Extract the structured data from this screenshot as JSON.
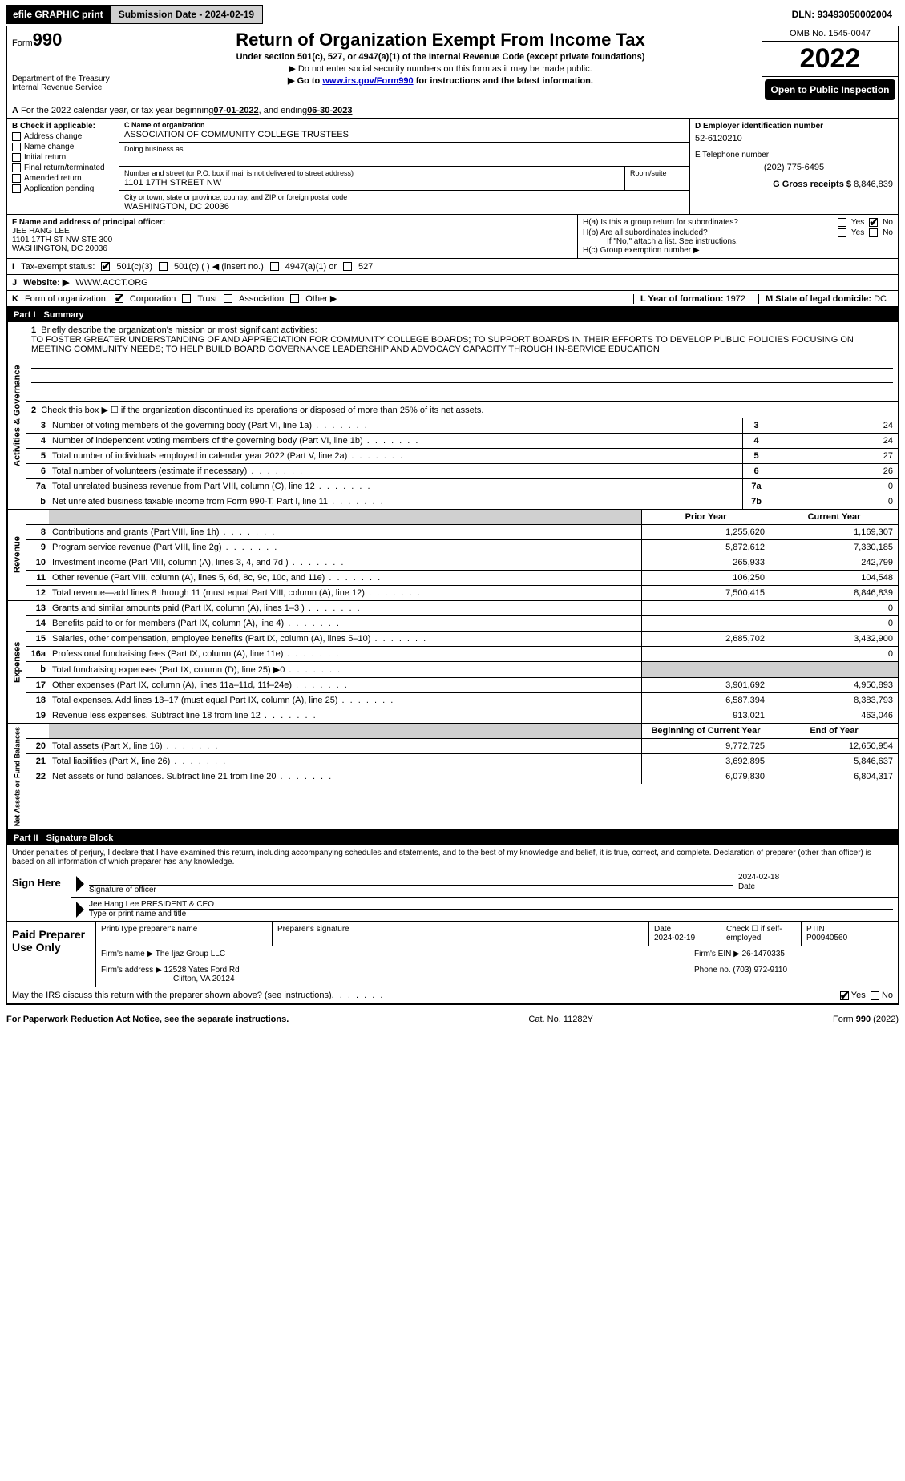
{
  "topbar": {
    "efile_label": "efile GRAPHIC print",
    "submission_label": "Submission Date - 2024-02-19",
    "dln_label": "DLN: 93493050002004"
  },
  "header": {
    "form_prefix": "Form",
    "form_number": "990",
    "dept1": "Department of the Treasury",
    "dept2": "Internal Revenue Service",
    "title": "Return of Organization Exempt From Income Tax",
    "sub1": "Under section 501(c), 527, or 4947(a)(1) of the Internal Revenue Code (except private foundations)",
    "sub2": "▶ Do not enter social security numbers on this form as it may be made public.",
    "sub3_pre": "▶ Go to ",
    "sub3_link": "www.irs.gov/Form990",
    "sub3_post": " for instructions and the latest information.",
    "omb": "OMB No. 1545-0047",
    "year": "2022",
    "open": "Open to Public Inspection"
  },
  "row_a": {
    "label_a": "A",
    "text1": "For the 2022 calendar year, or tax year beginning ",
    "date1": "07-01-2022",
    "text2": " , and ending ",
    "date2": "06-30-2023"
  },
  "box_b": {
    "label": "B Check if applicable:",
    "opts": [
      "Address change",
      "Name change",
      "Initial return",
      "Final return/terminated",
      "Amended return",
      "Application pending"
    ]
  },
  "box_c": {
    "name_lab": "C Name of organization",
    "name_val": "ASSOCIATION OF COMMUNITY COLLEGE TRUSTEES",
    "dba_lab": "Doing business as",
    "addr_lab": "Number and street (or P.O. box if mail is not delivered to street address)",
    "addr_val": "1101 17TH STREET NW",
    "room_lab": "Room/suite",
    "city_lab": "City or town, state or province, country, and ZIP or foreign postal code",
    "city_val": "WASHINGTON, DC  20036"
  },
  "box_d": {
    "lab": "D Employer identification number",
    "val": "52-6120210"
  },
  "box_e": {
    "lab": "E Telephone number",
    "val": "(202) 775-6495"
  },
  "box_g": {
    "lab": "G Gross receipts $ ",
    "val": "8,846,839"
  },
  "box_f": {
    "lab": "F Name and address of principal officer:",
    "l1": "JEE HANG LEE",
    "l2": "1101 17TH ST NW STE 300",
    "l3": "WASHINGTON, DC  20036"
  },
  "box_h": {
    "ha": "H(a)  Is this a group return for subordinates?",
    "hb": "H(b)  Are all subordinates included?",
    "hb2": "If \"No,\" attach a list. See instructions.",
    "hc": "H(c)  Group exemption number ▶",
    "yes": "Yes",
    "no": "No"
  },
  "row_i": {
    "lab": "I",
    "text": "Tax-exempt status:",
    "o1": "501(c)(3)",
    "o2": "501(c) (  ) ◀ (insert no.)",
    "o3": "4947(a)(1) or",
    "o4": "527"
  },
  "row_j": {
    "lab": "J",
    "text": "Website: ▶",
    "val": "WWW.ACCT.ORG"
  },
  "row_k": {
    "lab": "K",
    "text": "Form of organization:",
    "o1": "Corporation",
    "o2": "Trust",
    "o3": "Association",
    "o4": "Other ▶"
  },
  "row_l": {
    "lab": "L Year of formation: ",
    "val": "1972"
  },
  "row_m": {
    "lab": "M State of legal domicile: ",
    "val": "DC"
  },
  "part1": {
    "label": "Part I",
    "name": "Summary"
  },
  "part2": {
    "label": "Part II",
    "name": "Signature Block"
  },
  "side": {
    "gov": "Activities & Governance",
    "rev": "Revenue",
    "exp": "Expenses",
    "net": "Net Assets or Fund Balances"
  },
  "q1": {
    "num": "1",
    "text": "Briefly describe the organization's mission or most significant activities:",
    "desc": "TO FOSTER GREATER UNDERSTANDING OF AND APPRECIATION FOR COMMUNITY COLLEGE BOARDS; TO SUPPORT BOARDS IN THEIR EFFORTS TO DEVELOP PUBLIC POLICIES FOCUSING ON MEETING COMMUNITY NEEDS; TO HELP BUILD BOARD GOVERNANCE LEADERSHIP AND ADVOCACY CAPACITY THROUGH IN-SERVICE EDUCATION"
  },
  "q2": {
    "num": "2",
    "text": "Check this box ▶ ☐ if the organization discontinued its operations or disposed of more than 25% of its net assets."
  },
  "gov_rows": [
    {
      "num": "3",
      "text": "Number of voting members of the governing body (Part VI, line 1a)",
      "box": "3",
      "val": "24"
    },
    {
      "num": "4",
      "text": "Number of independent voting members of the governing body (Part VI, line 1b)",
      "box": "4",
      "val": "24"
    },
    {
      "num": "5",
      "text": "Total number of individuals employed in calendar year 2022 (Part V, line 2a)",
      "box": "5",
      "val": "27"
    },
    {
      "num": "6",
      "text": "Total number of volunteers (estimate if necessary)",
      "box": "6",
      "val": "26"
    },
    {
      "num": "7a",
      "text": "Total unrelated business revenue from Part VIII, column (C), line 12",
      "box": "7a",
      "val": "0"
    },
    {
      "num": "b",
      "text": "Net unrelated business taxable income from Form 990-T, Part I, line 11",
      "box": "7b",
      "val": "0"
    }
  ],
  "cols": {
    "prior": "Prior Year",
    "current": "Current Year"
  },
  "rev_rows": [
    {
      "num": "8",
      "text": "Contributions and grants (Part VIII, line 1h)",
      "prior": "1,255,620",
      "cur": "1,169,307"
    },
    {
      "num": "9",
      "text": "Program service revenue (Part VIII, line 2g)",
      "prior": "5,872,612",
      "cur": "7,330,185"
    },
    {
      "num": "10",
      "text": "Investment income (Part VIII, column (A), lines 3, 4, and 7d )",
      "prior": "265,933",
      "cur": "242,799"
    },
    {
      "num": "11",
      "text": "Other revenue (Part VIII, column (A), lines 5, 6d, 8c, 9c, 10c, and 11e)",
      "prior": "106,250",
      "cur": "104,548"
    },
    {
      "num": "12",
      "text": "Total revenue—add lines 8 through 11 (must equal Part VIII, column (A), line 12)",
      "prior": "7,500,415",
      "cur": "8,846,839"
    }
  ],
  "exp_rows": [
    {
      "num": "13",
      "text": "Grants and similar amounts paid (Part IX, column (A), lines 1–3 )",
      "prior": "",
      "cur": "0"
    },
    {
      "num": "14",
      "text": "Benefits paid to or for members (Part IX, column (A), line 4)",
      "prior": "",
      "cur": "0"
    },
    {
      "num": "15",
      "text": "Salaries, other compensation, employee benefits (Part IX, column (A), lines 5–10)",
      "prior": "2,685,702",
      "cur": "3,432,900"
    },
    {
      "num": "16a",
      "text": "Professional fundraising fees (Part IX, column (A), line 11e)",
      "prior": "",
      "cur": "0"
    },
    {
      "num": "b",
      "text": "Total fundraising expenses (Part IX, column (D), line 25) ▶0",
      "prior": "GREY",
      "cur": "GREY"
    },
    {
      "num": "17",
      "text": "Other expenses (Part IX, column (A), lines 11a–11d, 11f–24e)",
      "prior": "3,901,692",
      "cur": "4,950,893"
    },
    {
      "num": "18",
      "text": "Total expenses. Add lines 13–17 (must equal Part IX, column (A), line 25)",
      "prior": "6,587,394",
      "cur": "8,383,793"
    },
    {
      "num": "19",
      "text": "Revenue less expenses. Subtract line 18 from line 12",
      "prior": "913,021",
      "cur": "463,046"
    }
  ],
  "net_cols": {
    "prior": "Beginning of Current Year",
    "current": "End of Year"
  },
  "net_rows": [
    {
      "num": "20",
      "text": "Total assets (Part X, line 16)",
      "prior": "9,772,725",
      "cur": "12,650,954"
    },
    {
      "num": "21",
      "text": "Total liabilities (Part X, line 26)",
      "prior": "3,692,895",
      "cur": "5,846,637"
    },
    {
      "num": "22",
      "text": "Net assets or fund balances. Subtract line 21 from line 20",
      "prior": "6,079,830",
      "cur": "6,804,317"
    }
  ],
  "sig_decl": "Under penalties of perjury, I declare that I have examined this return, including accompanying schedules and statements, and to the best of my knowledge and belief, it is true, correct, and complete. Declaration of preparer (other than officer) is based on all information of which preparer has any knowledge.",
  "sign": {
    "here": "Sign Here",
    "sig_lab": "Signature of officer",
    "date_lab": "Date",
    "date_val": "2024-02-18",
    "name_val": "Jee Hang Lee PRESIDENT & CEO",
    "name_lab": "Type or print name and title"
  },
  "paid": {
    "title": "Paid Preparer Use Only",
    "h1": "Print/Type preparer's name",
    "h2": "Preparer's signature",
    "h3": "Date",
    "h4": "Check ☐ if self-employed",
    "h5": "PTIN",
    "date": "2024-02-19",
    "ptin": "P00940560",
    "firm_lab": "Firm's name   ▶",
    "firm_val": "The Ijaz Group LLC",
    "ein_lab": "Firm's EIN ▶",
    "ein_val": "26-1470335",
    "addr_lab": "Firm's address ▶",
    "addr_val1": "12528 Yates Ford Rd",
    "addr_val2": "Clifton, VA  20124",
    "phone_lab": "Phone no. ",
    "phone_val": "(703) 972-9110"
  },
  "may": {
    "text": "May the IRS discuss this return with the preparer shown above? (see instructions)",
    "yes": "Yes",
    "no": "No"
  },
  "footer": {
    "left": "For Paperwork Reduction Act Notice, see the separate instructions.",
    "mid": "Cat. No. 11282Y",
    "right": "Form 990 (2022)"
  }
}
